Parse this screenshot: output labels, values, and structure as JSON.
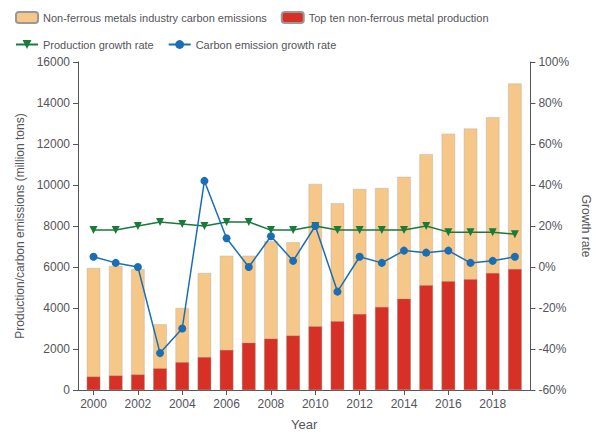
{
  "chart_data": {
    "type": "bar",
    "xlabel": "Year",
    "ylabel": "Production/carbon emissions (million tons)",
    "y2label": "Growth rate",
    "x": [
      2000,
      2001,
      2002,
      2003,
      2004,
      2005,
      2006,
      2007,
      2008,
      2009,
      2010,
      2011,
      2012,
      2013,
      2014,
      2015,
      2016,
      2017,
      2018,
      2019
    ],
    "xlim": [
      1999.3,
      2019.7
    ],
    "xticks": [
      2000,
      2002,
      2004,
      2006,
      2008,
      2010,
      2012,
      2014,
      2016,
      2018
    ],
    "ylim": [
      0,
      16000
    ],
    "yticks": [
      0,
      2000,
      4000,
      6000,
      8000,
      10000,
      12000,
      14000,
      16000
    ],
    "y2lim": [
      -60,
      100
    ],
    "y2ticks": [
      {
        "value": -60,
        "label": "-60%"
      },
      {
        "value": -40,
        "label": "-40%"
      },
      {
        "value": -20,
        "label": "-20%"
      },
      {
        "value": 0,
        "label": "0%"
      },
      {
        "value": 20,
        "label": "20%"
      },
      {
        "value": 40,
        "label": "40%"
      },
      {
        "value": 60,
        "label": "60%"
      },
      {
        "value": 80,
        "label": "80%"
      },
      {
        "value": 100,
        "label": "100%"
      }
    ],
    "grid": false,
    "legend": "top",
    "series": [
      {
        "name": "Non-ferrous metals industry carbon emissions",
        "type": "bar",
        "color": "#f5c889",
        "values": [
          5950,
          6050,
          5900,
          3200,
          4000,
          5700,
          6550,
          6550,
          7250,
          7200,
          10050,
          9100,
          9800,
          9850,
          10400,
          11500,
          12500,
          12750,
          13300,
          14950
        ]
      },
      {
        "name": "Top ten non-ferrous metal production",
        "type": "bar",
        "color": "#d63027",
        "values": [
          650,
          700,
          750,
          1050,
          1350,
          1600,
          1950,
          2300,
          2500,
          2650,
          3100,
          3350,
          3700,
          4050,
          4450,
          5100,
          5300,
          5400,
          5700,
          5900
        ]
      },
      {
        "name": "Production growth rate",
        "type": "line",
        "axis": "y2",
        "color": "#1a7a3c",
        "marker": "triangle_down",
        "values": [
          18,
          18,
          20,
          22,
          21,
          20,
          22,
          22,
          18,
          18,
          20,
          18,
          18,
          18,
          18,
          20,
          17,
          17,
          17,
          16
        ]
      },
      {
        "name": "Carbon emission growth rate",
        "type": "line",
        "axis": "y2",
        "color": "#1a6eb5",
        "marker": "circle",
        "values": [
          5,
          2,
          0,
          -42,
          -30,
          42,
          14,
          0,
          15,
          3,
          20,
          -12,
          5,
          2,
          8,
          7,
          8,
          2,
          3,
          5
        ]
      }
    ]
  }
}
